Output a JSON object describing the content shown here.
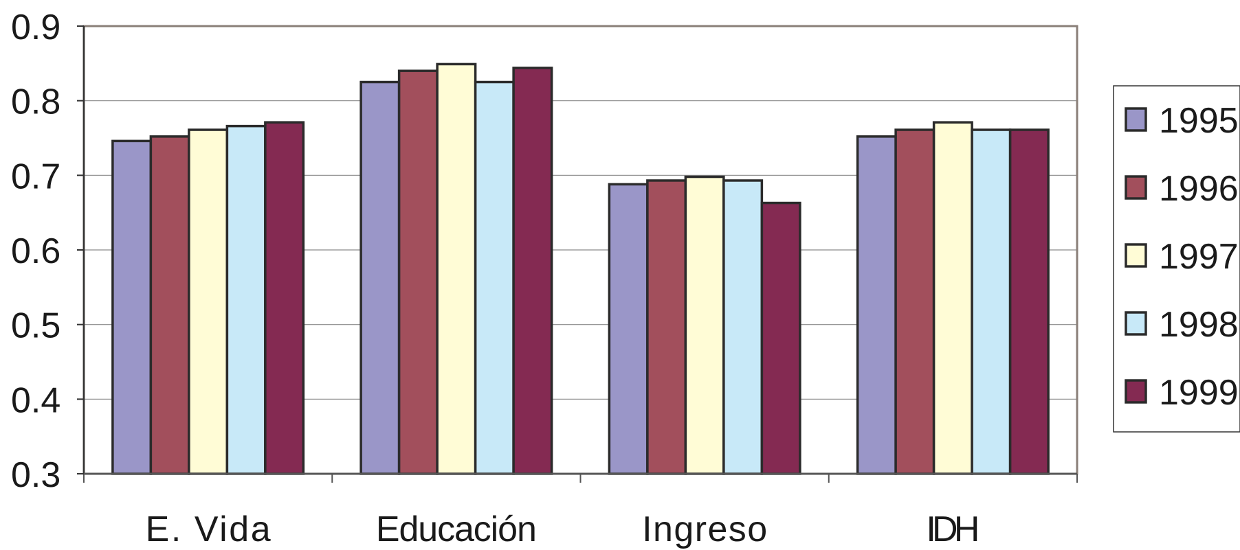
{
  "chart_data": {
    "type": "bar",
    "title": "",
    "xlabel": "",
    "ylabel": "",
    "categories": [
      "E. Vida",
      "Educación",
      "Ingreso",
      "IDH"
    ],
    "ylim": [
      0.3,
      0.9
    ],
    "yticks": [
      "0.9",
      "0.8",
      "0.7",
      "0.6",
      "0.5",
      "0.4",
      "0.3"
    ],
    "grid": true,
    "legend_position": "right",
    "series": [
      {
        "name": "1995",
        "color": "#9A96C8",
        "values": [
          0.746,
          0.825,
          0.688,
          0.752
        ]
      },
      {
        "name": "1996",
        "color": "#A24F5C",
        "values": [
          0.752,
          0.84,
          0.693,
          0.761
        ]
      },
      {
        "name": "1997",
        "color": "#FFFCD6",
        "values": [
          0.761,
          0.849,
          0.698,
          0.771
        ]
      },
      {
        "name": "1998",
        "color": "#C8E9F8",
        "values": [
          0.766,
          0.825,
          0.693,
          0.761
        ]
      },
      {
        "name": "1999",
        "color": "#842A52",
        "values": [
          0.771,
          0.844,
          0.663,
          0.761
        ]
      }
    ]
  }
}
